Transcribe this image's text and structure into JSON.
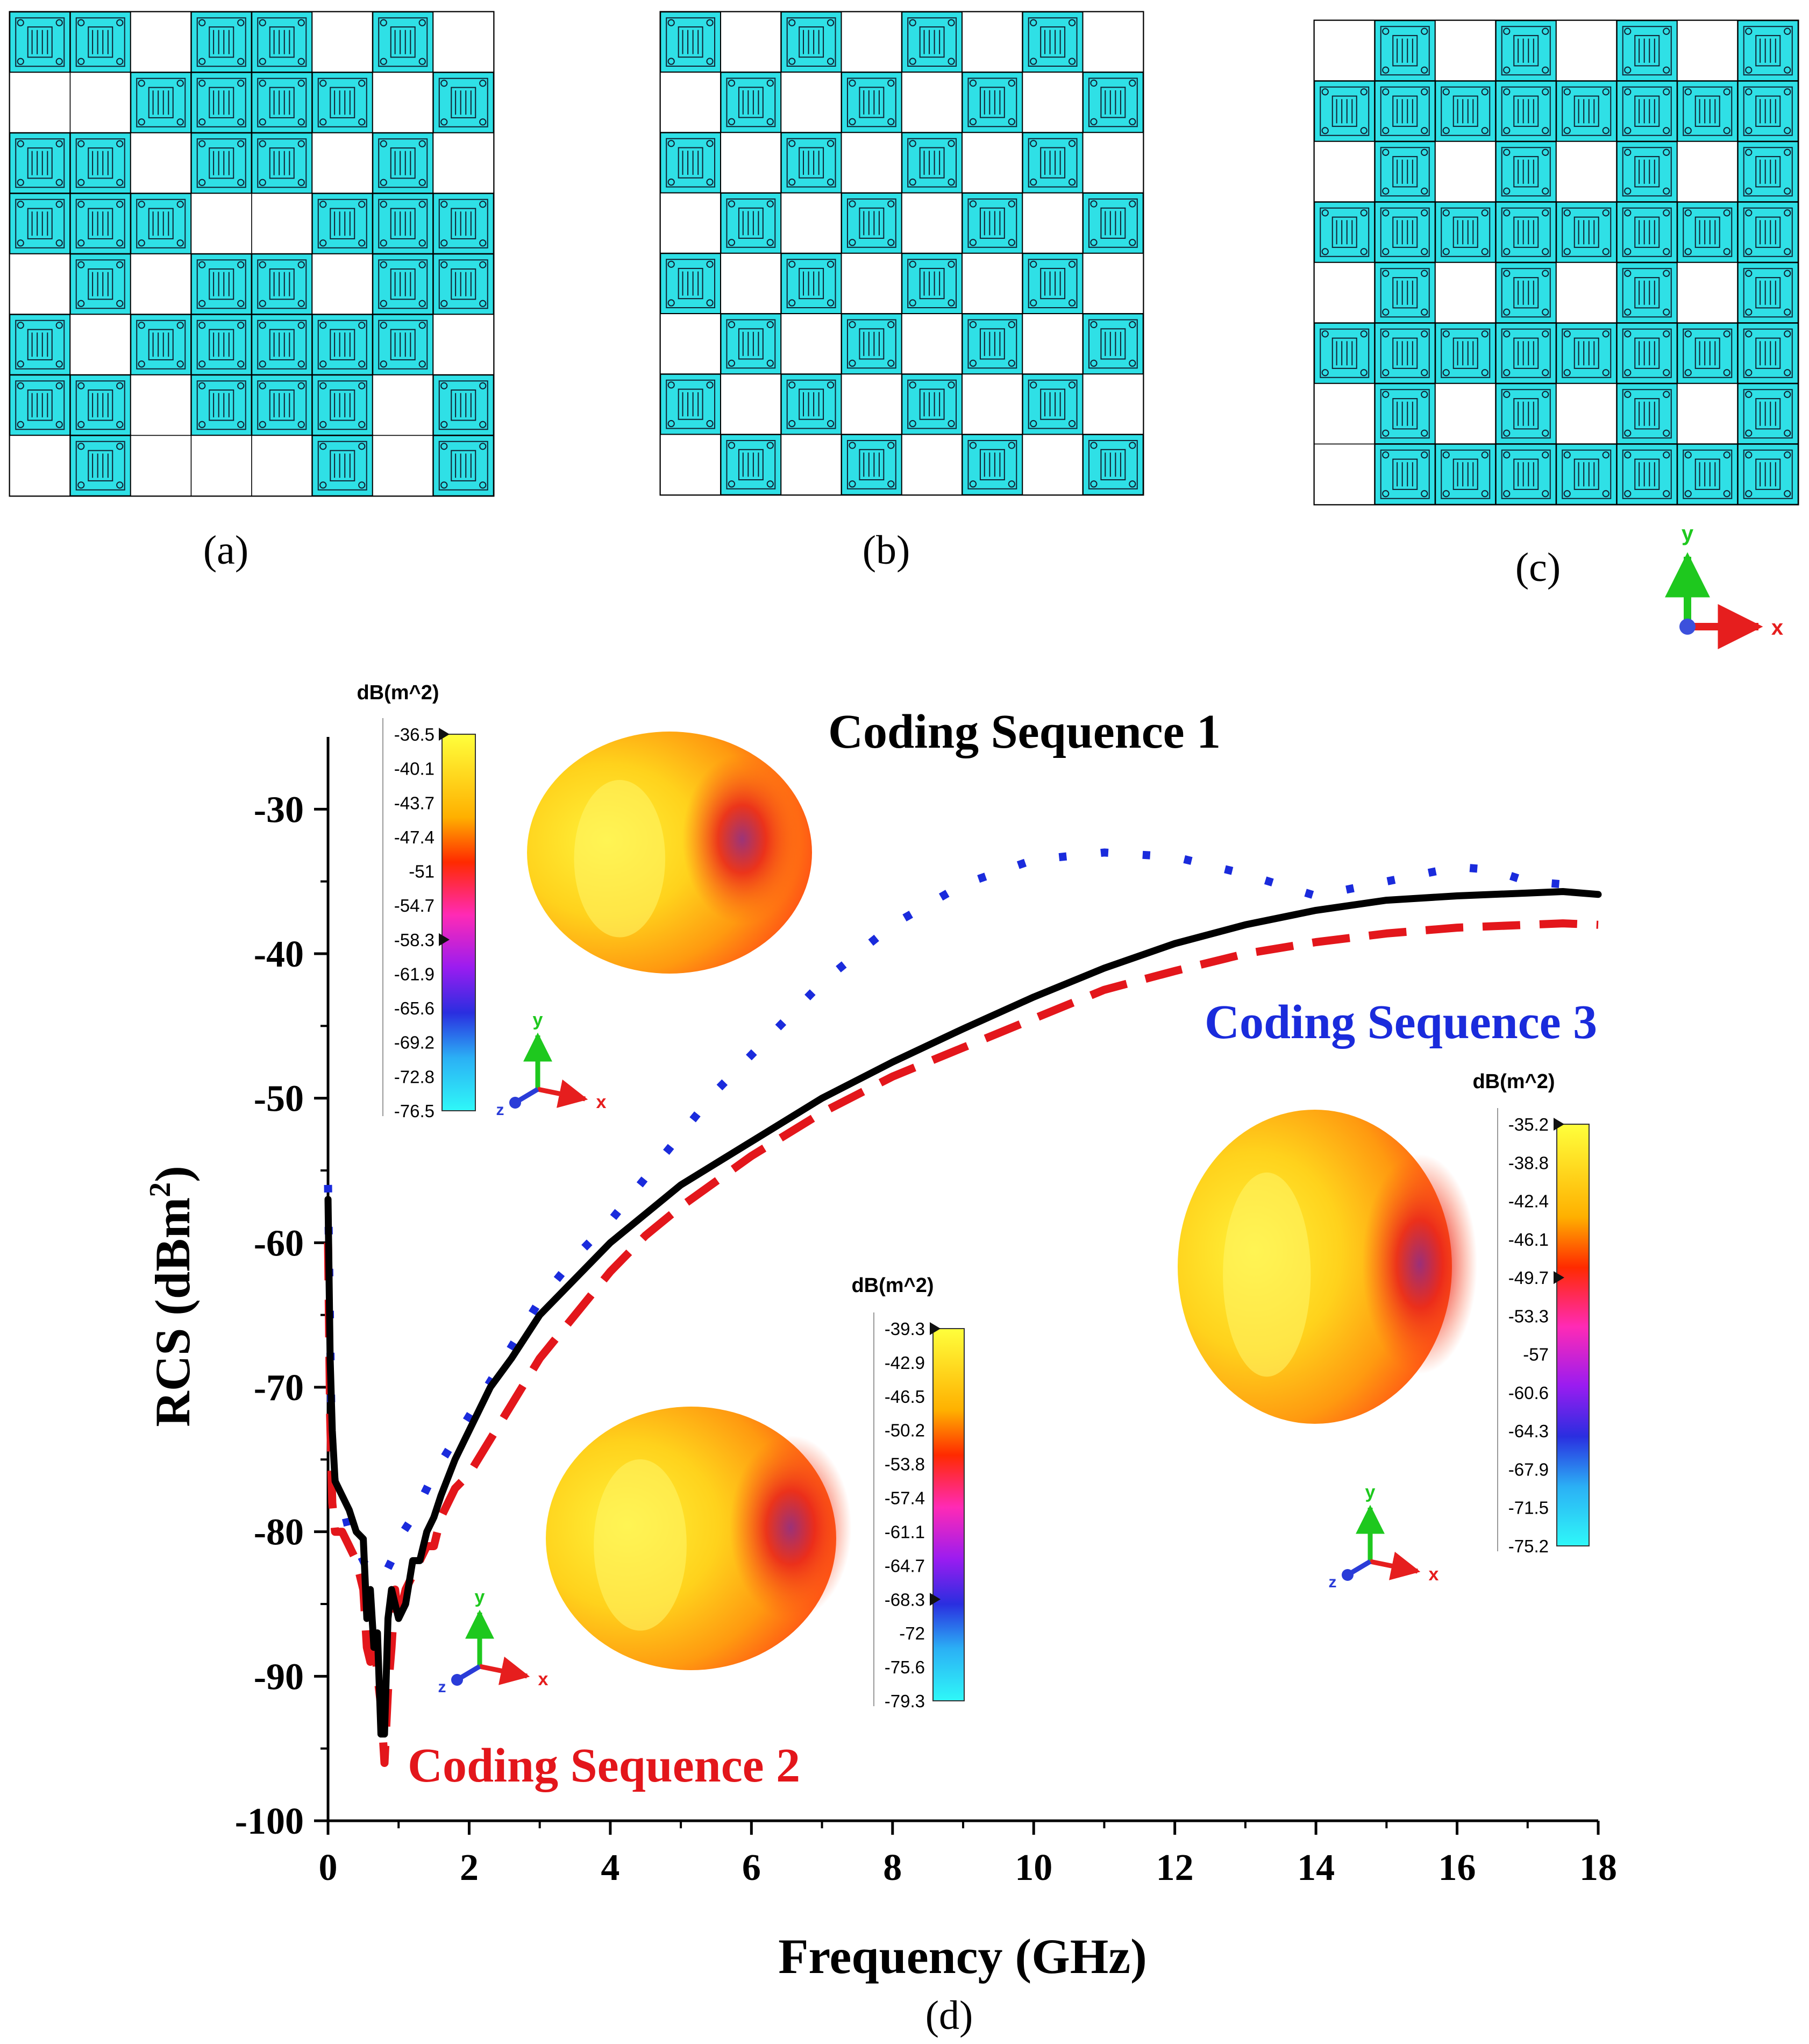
{
  "panels": [
    {
      "label": "(a)",
      "grid": [
        "11011010",
        "00111101",
        "11011010",
        "11100111",
        "01011011",
        "10111110",
        "11011101",
        "01000101"
      ]
    },
    {
      "label": "(b)",
      "grid": [
        "10101010",
        "01010101",
        "10101010",
        "01010101",
        "10101010",
        "01010101",
        "10101010",
        "01010101"
      ]
    },
    {
      "label": "(c)",
      "grid": [
        "01010101",
        "11111111",
        "01010101",
        "11111111",
        "01010101",
        "11111111",
        "01010101",
        "01111111"
      ]
    }
  ],
  "axes_triad": {
    "x": "x",
    "y": "y",
    "z": "z"
  },
  "colorbar_unit": "dB(m^2)",
  "colorbars": [
    {
      "name": "seq1",
      "ticks": [
        "-36.5",
        "-40.1",
        "-43.7",
        "-47.4",
        "-51",
        "-54.7",
        "-58.3",
        "-61.9",
        "-65.6",
        "-69.2",
        "-72.8",
        "-76.5"
      ]
    },
    {
      "name": "seq2",
      "ticks": [
        "-39.3",
        "-42.9",
        "-46.5",
        "-50.2",
        "-53.8",
        "-57.4",
        "-61.1",
        "-64.7",
        "-68.3",
        "-72",
        "-75.6",
        "-79.3"
      ]
    },
    {
      "name": "seq3",
      "ticks": [
        "-35.2",
        "-38.8",
        "-42.4",
        "-46.1",
        "-49.7",
        "-53.3",
        "-57",
        "-60.6",
        "-64.3",
        "-67.9",
        "-71.5",
        "-75.2"
      ]
    }
  ],
  "colors": {
    "cell_fill": "#2fe0e6",
    "seq1": "#000000",
    "seq2": "#e3161b",
    "seq3": "#1a2bdc"
  },
  "chart_data": {
    "type": "line",
    "panel_label": "(d)",
    "xlabel": "Frequency (GHz)",
    "ylabel": "RCS (dBm",
    "ylabel_sup": "2",
    "ylabel_end": ")",
    "xlim": [
      0,
      18
    ],
    "ylim": [
      -100,
      -25
    ],
    "xticks": [
      0,
      2,
      4,
      6,
      8,
      10,
      12,
      14,
      16,
      18
    ],
    "yticks": [
      -30,
      -40,
      -50,
      -60,
      -70,
      -80,
      -90,
      -100
    ],
    "series": [
      {
        "name": "Coding Sequence 1",
        "style": "solid",
        "x": [
          0.0,
          0.03,
          0.06,
          0.1,
          0.2,
          0.3,
          0.4,
          0.5,
          0.55,
          0.6,
          0.65,
          0.7,
          0.75,
          0.8,
          0.85,
          0.9,
          0.95,
          1.0,
          1.1,
          1.2,
          1.3,
          1.4,
          1.5,
          1.6,
          1.8,
          2.0,
          2.3,
          2.6,
          3.0,
          3.5,
          4.0,
          4.5,
          5.0,
          5.5,
          6.0,
          7.0,
          8.0,
          9.0,
          10.0,
          11.0,
          12.0,
          13.0,
          14.0,
          15.0,
          16.0,
          17.0,
          17.5,
          18.0
        ],
        "y": [
          -57,
          -68,
          -73,
          -76.5,
          -77.5,
          -78.5,
          -80,
          -80.5,
          -86,
          -84,
          -88,
          -87,
          -94,
          -94,
          -86,
          -84,
          -85,
          -86,
          -85,
          -82,
          -82,
          -80,
          -79,
          -77.5,
          -75,
          -73,
          -70,
          -68,
          -65,
          -62.5,
          -60,
          -58,
          -56,
          -54.5,
          -53,
          -50,
          -47.5,
          -45.2,
          -43,
          -41,
          -39.3,
          -38,
          -37,
          -36.3,
          -36,
          -35.8,
          -35.7,
          -35.9
        ]
      },
      {
        "name": "Coding Sequence 2",
        "style": "dashed",
        "x": [
          0.0,
          0.03,
          0.06,
          0.1,
          0.2,
          0.3,
          0.4,
          0.5,
          0.55,
          0.6,
          0.65,
          0.7,
          0.75,
          0.8,
          0.85,
          0.9,
          0.95,
          1.0,
          1.1,
          1.2,
          1.3,
          1.4,
          1.5,
          1.6,
          1.8,
          2.0,
          2.5,
          3.0,
          3.5,
          4.0,
          4.5,
          5.0,
          6.0,
          7.0,
          8.0,
          9.0,
          10.0,
          11.0,
          12.0,
          13.0,
          14.0,
          15.0,
          16.0,
          17.0,
          17.5,
          18.0
        ],
        "y": [
          -60,
          -72,
          -78,
          -80,
          -80,
          -81,
          -82,
          -84,
          -88,
          -89,
          -87,
          -90,
          -92,
          -96,
          -91,
          -88,
          -84,
          -86,
          -84,
          -83,
          -82,
          -81,
          -81,
          -79,
          -77,
          -76,
          -72,
          -68,
          -65,
          -62,
          -59.5,
          -57.5,
          -54,
          -51,
          -48.5,
          -46.5,
          -44.5,
          -42.5,
          -41.2,
          -40,
          -39.2,
          -38.6,
          -38.2,
          -38,
          -37.9,
          -38
        ]
      },
      {
        "name": "Coding Sequence 3",
        "style": "dotted",
        "x": [
          0.0,
          0.05,
          0.1,
          0.2,
          0.3,
          0.4,
          0.5,
          0.6,
          0.7,
          0.8,
          0.9,
          1.0,
          1.2,
          1.5,
          2.0,
          2.5,
          3.0,
          3.5,
          4.0,
          4.5,
          5.0,
          5.5,
          6.0,
          7.0,
          8.0,
          9.0,
          10.0,
          11.0,
          12.0,
          13.0,
          14.0,
          15.0,
          16.0,
          16.5,
          17.0,
          17.5
        ],
        "y": [
          -56,
          -73,
          -77,
          -78,
          -80,
          -81,
          -82,
          -83,
          -83,
          -83,
          -82,
          -80.5,
          -79,
          -76,
          -72,
          -68,
          -64,
          -61,
          -58.5,
          -55.5,
          -52.5,
          -49.5,
          -47,
          -42,
          -38,
          -35.2,
          -33.5,
          -33,
          -33.3,
          -34.5,
          -36,
          -35,
          -34,
          -34.2,
          -35,
          -35.2
        ]
      }
    ],
    "annotations": [
      "Coding Sequence 1",
      "Coding Sequence 2",
      "Coding Sequence 3"
    ]
  }
}
